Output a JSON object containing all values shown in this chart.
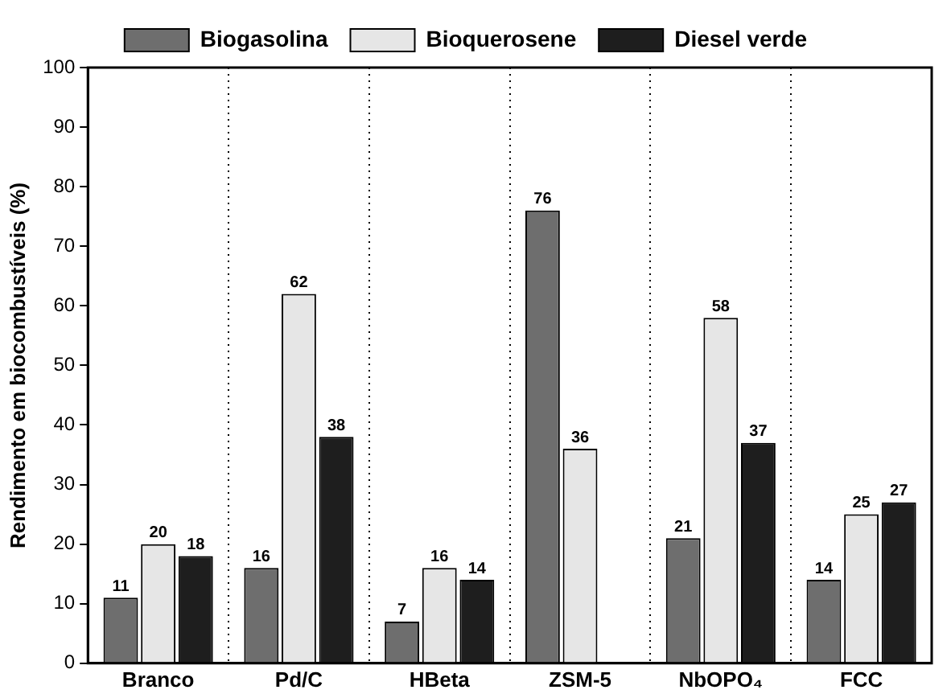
{
  "chart_data": {
    "type": "bar",
    "ylabel": "Rendimento em biocombustíveis (%)",
    "categories": [
      "Branco",
      "Pd/C",
      "HBeta",
      "ZSM-5",
      "NbOPO₄",
      "FCC"
    ],
    "series": [
      {
        "name": "Biogasolina",
        "color": "#6e6e6e",
        "values": [
          11,
          16,
          7,
          76,
          21,
          14
        ]
      },
      {
        "name": "Bioquerosene",
        "color": "#e6e6e6",
        "values": [
          20,
          62,
          16,
          36,
          58,
          25
        ]
      },
      {
        "name": "Diesel verde",
        "color": "#1e1e1e",
        "values": [
          18,
          38,
          14,
          null,
          37,
          27
        ]
      }
    ],
    "ylim": [
      0,
      100
    ],
    "yticks": [
      0,
      10,
      20,
      30,
      40,
      50,
      60,
      70,
      80,
      90,
      100
    ],
    "grid": "x",
    "legend": "top",
    "data_labels": true
  }
}
